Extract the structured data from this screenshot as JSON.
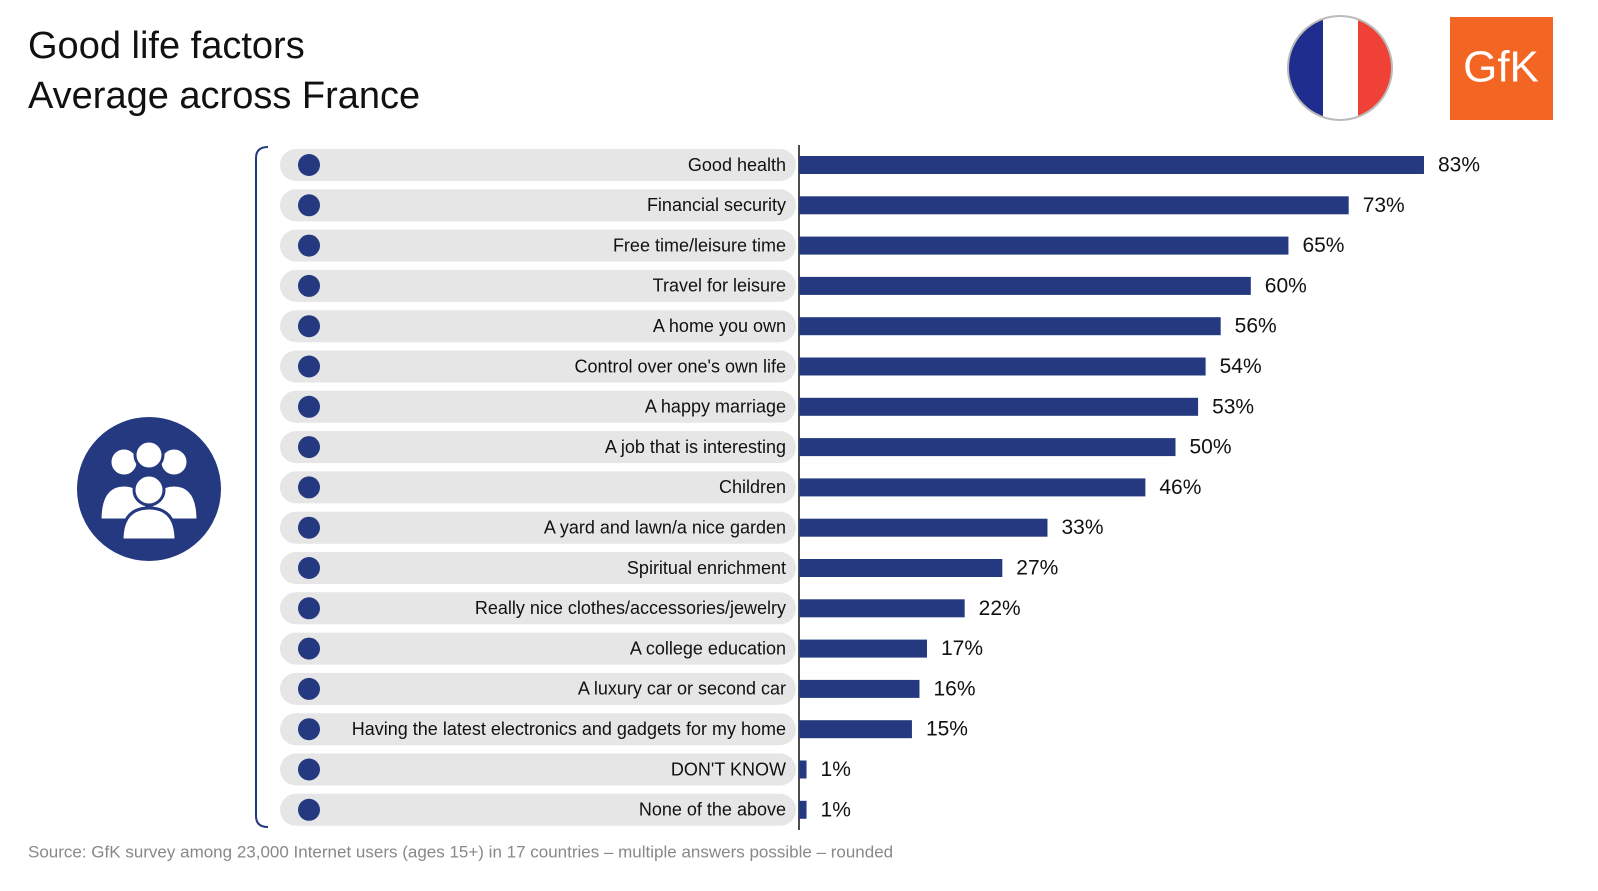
{
  "chart_data": {
    "type": "bar",
    "orientation": "horizontal",
    "title": [
      "Good life factors",
      "Average across France"
    ],
    "logo": "GfK",
    "source": "Source: GfK survey among 23,000 Internet users (ages 15+) in 17 countries – multiple answers possible – rounded",
    "color": "#24397f",
    "xlim": [
      0,
      100
    ],
    "categories": [
      "Good health",
      "Financial security",
      "Free time/leisure time",
      "Travel for leisure",
      "A home you own",
      "Control over one's own life",
      "A happy marriage",
      "A job that is interesting",
      "Children",
      "A yard and lawn/a nice garden",
      "Spiritual enrichment",
      "Really nice clothes/accessories/jewelry",
      "A college education",
      "A luxury car or second car",
      "Having the latest electronics and gadgets for my home",
      "DON'T KNOW",
      "None of the above"
    ],
    "values": [
      83,
      73,
      65,
      60,
      56,
      54,
      53,
      50,
      46,
      33,
      27,
      22,
      17,
      16,
      15,
      1,
      1
    ],
    "value_labels": [
      "83%",
      "73%",
      "65%",
      "60%",
      "56%",
      "54%",
      "53%",
      "50%",
      "46%",
      "33%",
      "27%",
      "22%",
      "17%",
      "16%",
      "15%",
      "1%",
      "1%"
    ]
  }
}
